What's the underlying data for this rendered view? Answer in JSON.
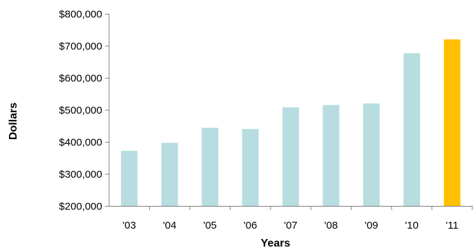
{
  "chart_data": {
    "type": "bar",
    "title": "",
    "xlabel": "Years",
    "ylabel": "Dollars",
    "categories": [
      "'03",
      "'04",
      "'05",
      "'06",
      "'07",
      "'08",
      "'09",
      "'10",
      "'11"
    ],
    "values": [
      372000,
      397000,
      444000,
      440000,
      508000,
      515000,
      520000,
      677000,
      720000
    ],
    "ylim": [
      200000,
      800000
    ],
    "yticks": [
      200000,
      300000,
      400000,
      500000,
      600000,
      700000,
      800000
    ],
    "ytick_labels": [
      "$200,000",
      "$300,000",
      "$400,000",
      "$500,000",
      "$600,000",
      "$700,000",
      "$800,000"
    ],
    "grid": false,
    "legend": "none",
    "colors": {
      "default_bar": "#b7dde0",
      "highlight_bar": "#ffc000",
      "axis": "#808080"
    },
    "highlight_category": "'11"
  }
}
